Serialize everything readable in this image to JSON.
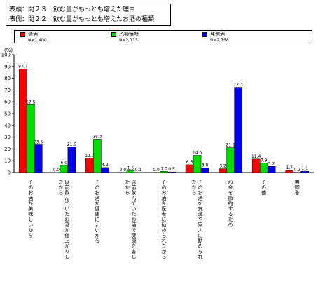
{
  "header": {
    "line1": "表頭：問２３　飲む量がもっとも増えた理由",
    "line2": "表側：問２２　飲む量がもっとも増えたお酒の種類"
  },
  "chart_data": {
    "type": "bar",
    "ylabel": "(%)",
    "ylim": [
      0,
      100
    ],
    "yticks": [
      0,
      10,
      20,
      30,
      40,
      50,
      60,
      70,
      80,
      90,
      100
    ],
    "categories": [
      "そのお酒が美味しいから",
      "以前飲んでいたお酒が値上がりしたから",
      "そのお酒が健康によいから",
      "以前飲んでいたお酒で健康を害したから",
      "そのお酒を医者に勧められたから",
      "そのお酒を友達や家人に勧められたから",
      "お金を節約するため",
      "その他",
      "無回答"
    ],
    "series": [
      {
        "name": "清酒",
        "n": "N=1,400",
        "color": "#ff0000",
        "values": [
          87.7,
          0.0,
          12.0,
          0.0,
          0.0,
          6.6,
          3.2,
          11.4,
          1.7
        ],
        "labels": [
          "87.7",
          "0.0",
          "12.0",
          "0.0",
          "0.0",
          "6.6",
          "3.2",
          "11.4",
          "1.7"
        ]
      },
      {
        "name": "乙類焼酎",
        "n": "N=2,173",
        "color": "#00dd00",
        "values": [
          57.5,
          6.0,
          28.3,
          1.5,
          1.0,
          14.6,
          21.1,
          7.9,
          0.2
        ],
        "labels": [
          "57.5",
          "6.0",
          "28.3",
          "1.5",
          "1.0",
          "14.6",
          "21.1",
          "7.9",
          "0.2"
        ]
      },
      {
        "name": "発泡酒",
        "n": "N=2,758",
        "color": "#0000ee",
        "values": [
          23.5,
          21.5,
          4.2,
          0.1,
          0.5,
          3.8,
          72.3,
          5.2,
          1.1
        ],
        "labels": [
          "23.5",
          "21.5",
          "4.2",
          "0.1",
          "0.5",
          "3.8",
          "72.3",
          "5.2",
          "1.1"
        ]
      }
    ],
    "grid": false,
    "legend": "top"
  }
}
